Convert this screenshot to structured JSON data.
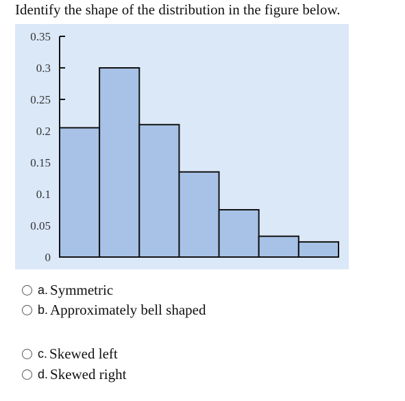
{
  "question": {
    "text": "Identify the shape of the distribution in the figure below."
  },
  "figure": {
    "background_color": "#dbe8f8",
    "bar_color": "#a7c2e6",
    "bar_border_color": "#111111"
  },
  "chart_data": {
    "type": "bar",
    "title": "",
    "xlabel": "",
    "ylabel": "",
    "ylim": [
      0,
      0.35
    ],
    "grid": false,
    "yticks": [
      "0",
      "0.05",
      "0.1",
      "0.15",
      "0.2",
      "0.25",
      "0.3",
      "0.35"
    ],
    "values": [
      0.205,
      0.3,
      0.21,
      0.135,
      0.075,
      0.033,
      0.024
    ]
  },
  "options": [
    {
      "letter": "a.",
      "text": "Symmetric"
    },
    {
      "letter": "b.",
      "text": "Approximately bell shaped"
    },
    {
      "letter": "c.",
      "text": "Skewed left"
    },
    {
      "letter": "d.",
      "text": "Skewed right"
    }
  ]
}
